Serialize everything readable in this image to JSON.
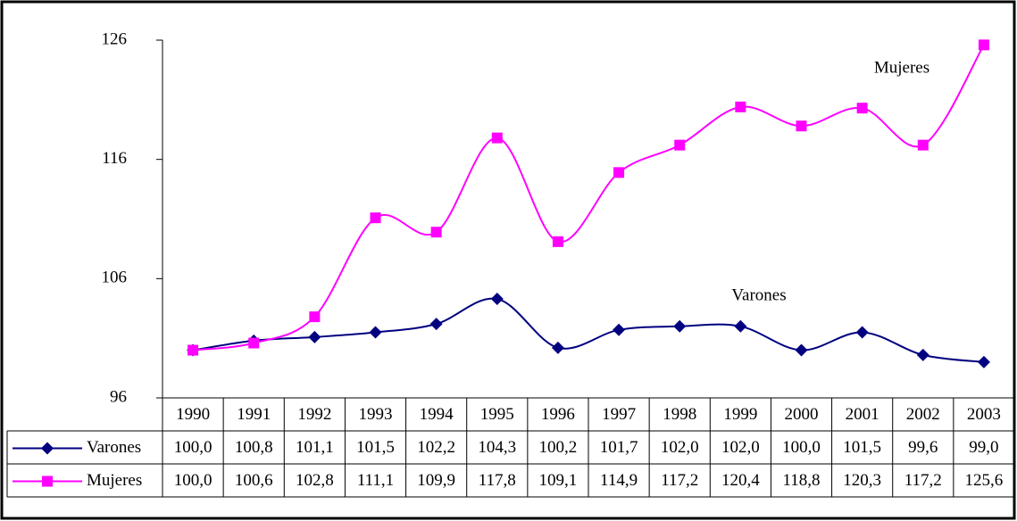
{
  "chart_data": {
    "type": "line",
    "categories": [
      "1990",
      "1991",
      "1992",
      "1993",
      "1994",
      "1995",
      "1996",
      "1997",
      "1998",
      "1999",
      "2000",
      "2001",
      "2002",
      "2003"
    ],
    "series": [
      {
        "name": "Varones",
        "color": "#000080",
        "marker": "diamond",
        "values": [
          100.0,
          100.8,
          101.1,
          101.5,
          102.2,
          104.3,
          100.2,
          101.7,
          102.0,
          102.0,
          100.0,
          101.5,
          99.6,
          99.0
        ],
        "value_labels": [
          "100,0",
          "100,8",
          "101,1",
          "101,5",
          "102,2",
          "104,3",
          "100,2",
          "101,7",
          "102,0",
          "102,0",
          "100,0",
          "101,5",
          "99,6",
          "99,0"
        ]
      },
      {
        "name": "Mujeres",
        "color": "#ff00ff",
        "marker": "square",
        "values": [
          100.0,
          100.6,
          102.8,
          111.1,
          109.9,
          117.8,
          109.1,
          114.9,
          117.2,
          120.4,
          118.8,
          120.3,
          117.2,
          125.6
        ],
        "value_labels": [
          "100,0",
          "100,6",
          "102,8",
          "111,1",
          "109,9",
          "117,8",
          "109,1",
          "114,9",
          "117,2",
          "120,4",
          "118,8",
          "120,3",
          "117,2",
          "125,6"
        ]
      }
    ],
    "ylim": [
      96,
      126
    ],
    "yticks": [
      96,
      106,
      116,
      126
    ],
    "smooth": true,
    "data_table": true
  }
}
